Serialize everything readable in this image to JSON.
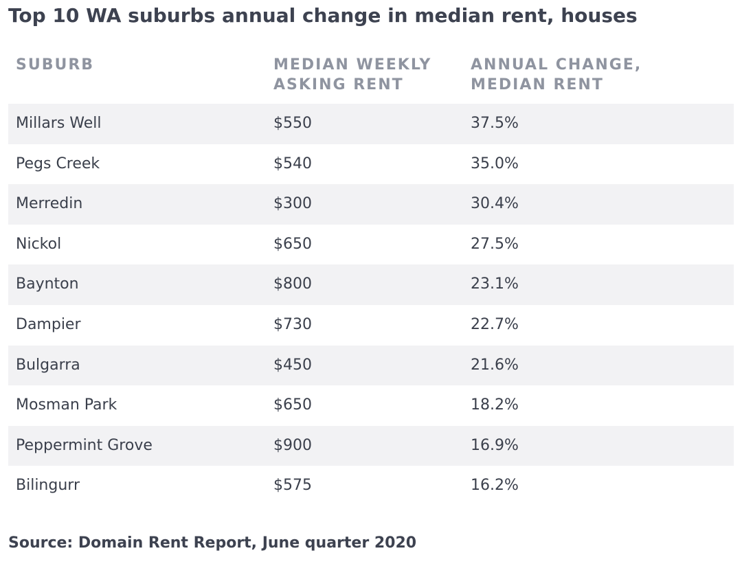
{
  "title": "Top 10 WA suburbs annual change in median rent, houses",
  "source": "Source: Domain Rent Report, June quarter 2020",
  "chart_data": {
    "type": "table",
    "title": "Top 10 WA suburbs annual change in median rent, houses",
    "columns": [
      {
        "line1": "SUBURB",
        "line2": ""
      },
      {
        "line1": "MEDIAN WEEKLY",
        "line2": "ASKING RENT"
      },
      {
        "line1": "ANNUAL CHANGE,",
        "line2": "MEDIAN RENT"
      }
    ],
    "rows": [
      {
        "suburb": "Millars Well",
        "rent": "$550",
        "change": "37.5%"
      },
      {
        "suburb": "Pegs Creek",
        "rent": "$540",
        "change": "35.0%"
      },
      {
        "suburb": "Merredin",
        "rent": "$300",
        "change": "30.4%"
      },
      {
        "suburb": "Nickol",
        "rent": "$650",
        "change": "27.5%"
      },
      {
        "suburb": "Baynton",
        "rent": "$800",
        "change": "23.1%"
      },
      {
        "suburb": "Dampier",
        "rent": "$730",
        "change": "22.7%"
      },
      {
        "suburb": "Bulgarra",
        "rent": "$450",
        "change": "21.6%"
      },
      {
        "suburb": "Mosman Park",
        "rent": "$650",
        "change": "18.2%"
      },
      {
        "suburb": "Peppermint Grove",
        "rent": "$900",
        "change": "16.9%"
      },
      {
        "suburb": "Bilingurr",
        "rent": "$575",
        "change": "16.2%"
      }
    ],
    "source": "Source: Domain Rent Report, June quarter 2020"
  },
  "colors": {
    "title": "#3d4250",
    "header": "#8f94a0",
    "text": "#3a3f4b",
    "row_shade": "#f2f2f4"
  }
}
